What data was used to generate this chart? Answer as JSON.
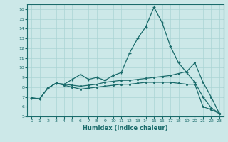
{
  "xlabel": "Humidex (Indice chaleur)",
  "bg_color": "#cce8e8",
  "line_color": "#1a6b6b",
  "grid_color": "#aad4d4",
  "xlim": [
    -0.5,
    23.5
  ],
  "ylim": [
    5,
    16.5
  ],
  "xticks": [
    0,
    1,
    2,
    3,
    4,
    5,
    6,
    7,
    8,
    9,
    10,
    11,
    12,
    13,
    14,
    15,
    16,
    17,
    18,
    19,
    20,
    21,
    22,
    23
  ],
  "yticks": [
    5,
    6,
    7,
    8,
    9,
    10,
    11,
    12,
    13,
    14,
    15,
    16
  ],
  "line1_x": [
    0,
    1,
    2,
    3,
    4,
    5,
    6,
    7,
    8,
    9,
    10,
    11,
    12,
    13,
    14,
    15,
    16,
    17,
    18,
    19,
    20,
    21,
    22,
    23
  ],
  "line1_y": [
    6.9,
    6.8,
    7.9,
    8.4,
    8.3,
    8.8,
    9.3,
    8.8,
    9.0,
    8.7,
    9.2,
    9.5,
    11.5,
    13.0,
    14.2,
    16.2,
    14.6,
    12.2,
    10.5,
    9.5,
    8.5,
    7.0,
    5.9,
    5.3
  ],
  "line2_x": [
    0,
    1,
    2,
    3,
    4,
    5,
    6,
    7,
    8,
    9,
    10,
    11,
    12,
    13,
    14,
    15,
    16,
    17,
    18,
    19,
    20,
    21,
    22,
    23
  ],
  "line2_y": [
    6.9,
    6.8,
    7.9,
    8.4,
    8.3,
    8.2,
    8.1,
    8.2,
    8.3,
    8.5,
    8.6,
    8.7,
    8.7,
    8.8,
    8.9,
    9.0,
    9.1,
    9.2,
    9.4,
    9.6,
    10.5,
    8.5,
    7.0,
    5.3
  ],
  "line3_x": [
    0,
    1,
    2,
    3,
    4,
    5,
    6,
    7,
    8,
    9,
    10,
    11,
    12,
    13,
    14,
    15,
    16,
    17,
    18,
    19,
    20,
    21,
    22,
    23
  ],
  "line3_y": [
    6.9,
    6.8,
    7.9,
    8.4,
    8.2,
    8.0,
    7.8,
    7.9,
    8.0,
    8.1,
    8.2,
    8.3,
    8.3,
    8.4,
    8.5,
    8.5,
    8.5,
    8.5,
    8.4,
    8.3,
    8.3,
    6.0,
    5.7,
    5.3
  ]
}
